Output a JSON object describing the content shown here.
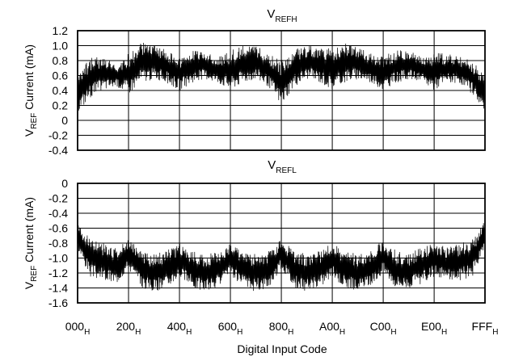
{
  "chart_data": [
    {
      "type": "line",
      "title_main": "V",
      "title_sub": "REFH",
      "ylabel_main": "V",
      "ylabel_sub": "REF",
      "ylabel_rest": " Current (mA)",
      "ylim": [
        -0.4,
        1.2
      ],
      "yticks": [
        "1.2",
        "1.0",
        "0.8",
        "0.6",
        "0.4",
        "0.2",
        "0",
        "-0.2",
        "-0.4"
      ],
      "grid": true,
      "series": [
        {
          "envelope_high": [
            [
              0,
              0.6
            ],
            [
              128,
              0.85
            ],
            [
              256,
              0.85
            ],
            [
              384,
              0.75
            ],
            [
              512,
              0.9
            ],
            [
              640,
              1.05
            ],
            [
              768,
              1.0
            ],
            [
              896,
              0.95
            ],
            [
              1024,
              0.85
            ],
            [
              1152,
              0.95
            ],
            [
              1280,
              0.95
            ],
            [
              1408,
              0.85
            ],
            [
              1536,
              0.95
            ],
            [
              1664,
              1.0
            ],
            [
              1792,
              1.0
            ],
            [
              1920,
              0.9
            ],
            [
              2048,
              0.8
            ],
            [
              2176,
              0.95
            ],
            [
              2304,
              1.0
            ],
            [
              2432,
              1.0
            ],
            [
              2560,
              0.95
            ],
            [
              2688,
              1.05
            ],
            [
              2816,
              1.0
            ],
            [
              2944,
              0.9
            ],
            [
              3072,
              0.85
            ],
            [
              3200,
              0.95
            ],
            [
              3328,
              0.95
            ],
            [
              3456,
              0.85
            ],
            [
              3584,
              0.9
            ],
            [
              3712,
              0.9
            ],
            [
              3840,
              0.85
            ],
            [
              3968,
              0.8
            ],
            [
              4095,
              0.6
            ]
          ],
          "envelope_low": [
            [
              0,
              0.1
            ],
            [
              128,
              0.3
            ],
            [
              256,
              0.4
            ],
            [
              384,
              0.45
            ],
            [
              512,
              0.35
            ],
            [
              640,
              0.5
            ],
            [
              768,
              0.55
            ],
            [
              896,
              0.5
            ],
            [
              1024,
              0.4
            ],
            [
              1152,
              0.5
            ],
            [
              1280,
              0.55
            ],
            [
              1408,
              0.5
            ],
            [
              1536,
              0.4
            ],
            [
              1664,
              0.5
            ],
            [
              1792,
              0.55
            ],
            [
              1920,
              0.45
            ],
            [
              2048,
              0.2
            ],
            [
              2176,
              0.45
            ],
            [
              2304,
              0.55
            ],
            [
              2432,
              0.5
            ],
            [
              2560,
              0.4
            ],
            [
              2688,
              0.5
            ],
            [
              2816,
              0.55
            ],
            [
              2944,
              0.5
            ],
            [
              3072,
              0.4
            ],
            [
              3200,
              0.5
            ],
            [
              3328,
              0.55
            ],
            [
              3456,
              0.5
            ],
            [
              3584,
              0.4
            ],
            [
              3712,
              0.5
            ],
            [
              3840,
              0.5
            ],
            [
              3968,
              0.35
            ],
            [
              4095,
              0.1
            ]
          ]
        }
      ]
    },
    {
      "type": "line",
      "title_main": "V",
      "title_sub": "REFL",
      "ylabel_main": "V",
      "ylabel_sub": "REF",
      "ylabel_rest": " Current (mA)",
      "ylim": [
        -1.6,
        0
      ],
      "yticks": [
        "0",
        "-0.2",
        "-0.4",
        "-0.6",
        "-0.8",
        "-1.0",
        "-1.2",
        "-1.4",
        "-1.6"
      ],
      "grid": true,
      "series": [
        {
          "envelope_high": [
            [
              0,
              -0.5
            ],
            [
              128,
              -0.75
            ],
            [
              256,
              -0.8
            ],
            [
              384,
              -0.85
            ],
            [
              512,
              -0.75
            ],
            [
              640,
              -0.9
            ],
            [
              768,
              -0.95
            ],
            [
              896,
              -0.9
            ],
            [
              1024,
              -0.8
            ],
            [
              1152,
              -0.9
            ],
            [
              1280,
              -0.95
            ],
            [
              1408,
              -0.9
            ],
            [
              1536,
              -0.8
            ],
            [
              1664,
              -0.9
            ],
            [
              1792,
              -0.95
            ],
            [
              1920,
              -0.9
            ],
            [
              2048,
              -0.75
            ],
            [
              2176,
              -0.9
            ],
            [
              2304,
              -0.95
            ],
            [
              2432,
              -0.9
            ],
            [
              2560,
              -0.8
            ],
            [
              2688,
              -0.9
            ],
            [
              2816,
              -0.95
            ],
            [
              2944,
              -0.9
            ],
            [
              3072,
              -0.75
            ],
            [
              3200,
              -0.9
            ],
            [
              3328,
              -0.95
            ],
            [
              3456,
              -0.85
            ],
            [
              3584,
              -0.8
            ],
            [
              3712,
              -0.85
            ],
            [
              3840,
              -0.8
            ],
            [
              3968,
              -0.75
            ],
            [
              4095,
              -0.5
            ]
          ],
          "envelope_low": [
            [
              0,
              -0.9
            ],
            [
              128,
              -1.25
            ],
            [
              256,
              -1.3
            ],
            [
              384,
              -1.35
            ],
            [
              512,
              -1.15
            ],
            [
              640,
              -1.4
            ],
            [
              768,
              -1.45
            ],
            [
              896,
              -1.4
            ],
            [
              1024,
              -1.25
            ],
            [
              1152,
              -1.4
            ],
            [
              1280,
              -1.45
            ],
            [
              1408,
              -1.4
            ],
            [
              1536,
              -1.25
            ],
            [
              1664,
              -1.4
            ],
            [
              1792,
              -1.45
            ],
            [
              1920,
              -1.4
            ],
            [
              2048,
              -1.15
            ],
            [
              2176,
              -1.4
            ],
            [
              2304,
              -1.45
            ],
            [
              2432,
              -1.4
            ],
            [
              2560,
              -1.25
            ],
            [
              2688,
              -1.4
            ],
            [
              2816,
              -1.45
            ],
            [
              2944,
              -1.4
            ],
            [
              3072,
              -1.2
            ],
            [
              3200,
              -1.4
            ],
            [
              3328,
              -1.4
            ],
            [
              3456,
              -1.35
            ],
            [
              3584,
              -1.25
            ],
            [
              3712,
              -1.3
            ],
            [
              3840,
              -1.3
            ],
            [
              3968,
              -1.25
            ],
            [
              4095,
              -0.9
            ]
          ]
        }
      ]
    }
  ],
  "x_axis": {
    "xlabel": "Digital Input Code",
    "xlim": [
      0,
      4095
    ],
    "ticks": [
      {
        "value": 0,
        "main": "000",
        "sub": "H"
      },
      {
        "value": 512,
        "main": "200",
        "sub": "H"
      },
      {
        "value": 1024,
        "main": "400",
        "sub": "H"
      },
      {
        "value": 1536,
        "main": "600",
        "sub": "H"
      },
      {
        "value": 2048,
        "main": "800",
        "sub": "H"
      },
      {
        "value": 2560,
        "main": "A00",
        "sub": "H"
      },
      {
        "value": 3072,
        "main": "C00",
        "sub": "H"
      },
      {
        "value": 3584,
        "main": "E00",
        "sub": "H"
      },
      {
        "value": 4095,
        "main": "FFF",
        "sub": "H"
      }
    ]
  },
  "colors": {
    "trace": "#000000",
    "grid": "#000000",
    "background": "#ffffff"
  }
}
